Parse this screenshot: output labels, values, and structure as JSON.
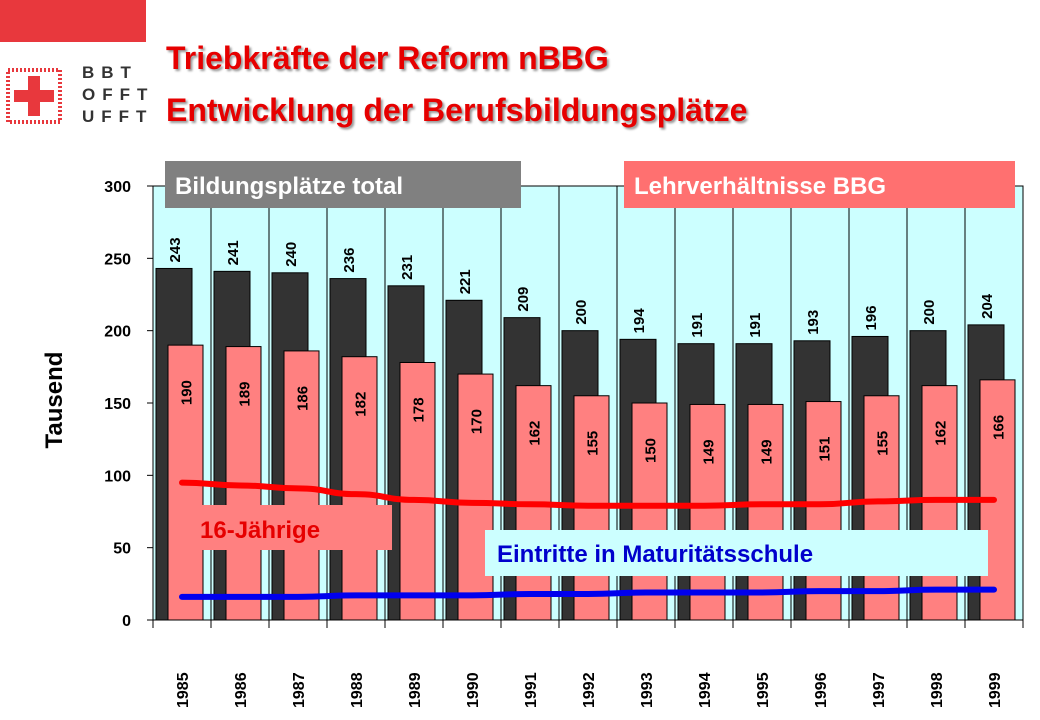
{
  "header": {
    "title_line1": "Triebkräfte der Reform nBBG",
    "title_line2": "Entwicklung der Berufsbildungsplätze",
    "logo_lines": [
      "BBT",
      "OFFT",
      "UFFT"
    ],
    "logo_color": "#e8383d"
  },
  "chart_data": {
    "type": "bar",
    "ylabel": "Tausend",
    "ylim": [
      0,
      300
    ],
    "yticks": [
      0,
      50,
      100,
      150,
      200,
      250,
      300
    ],
    "plot_background": "#ccffff",
    "categories": [
      "1985",
      "1986",
      "1987",
      "1988",
      "1989",
      "1990",
      "1991",
      "1992",
      "1993",
      "1994",
      "1995",
      "1996",
      "1997",
      "1998",
      "1999"
    ],
    "series": [
      {
        "name": "Bildungsplätze total",
        "kind": "bar",
        "color": "#333333",
        "legend_color": "#808080",
        "values": [
          243,
          241,
          240,
          236,
          231,
          221,
          209,
          200,
          194,
          191,
          191,
          193,
          196,
          200,
          204
        ]
      },
      {
        "name": "Lehrverhältnisse BBG",
        "kind": "bar",
        "color": "#ff8080",
        "legend_color": "#ff7070",
        "values": [
          190,
          189,
          186,
          182,
          178,
          170,
          162,
          155,
          150,
          149,
          149,
          151,
          155,
          162,
          166
        ]
      },
      {
        "name": "16-Jährige",
        "kind": "line",
        "color": "#ff0000",
        "label_bg": "#ff8080",
        "values": [
          95,
          93,
          91,
          87,
          83,
          81,
          80,
          79,
          79,
          79,
          80,
          80,
          82,
          83,
          83
        ]
      },
      {
        "name": "Eintritte in Maturitätsschule",
        "kind": "line",
        "color": "#0000ee",
        "label_bg": "#ccffff",
        "values": [
          16,
          16,
          16,
          17,
          17,
          17,
          18,
          18,
          19,
          19,
          19,
          20,
          20,
          21,
          21
        ]
      }
    ]
  }
}
